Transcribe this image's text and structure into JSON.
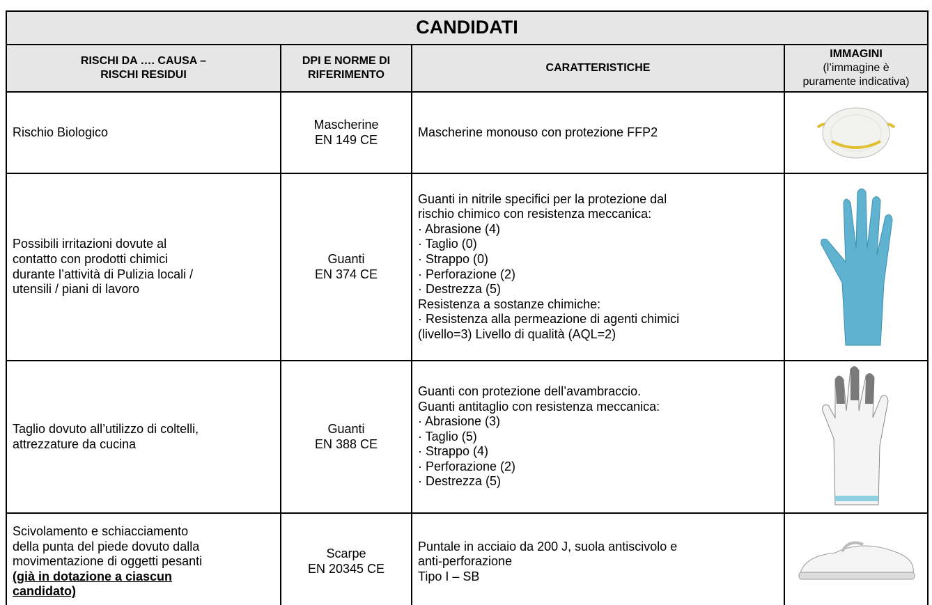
{
  "table": {
    "title": "CANDIDATI",
    "headers": [
      [
        "RISCHI DA …. CAUSA –",
        "RISCHI RESIDUI"
      ],
      [
        "DPI E NORME DI",
        "RIFERIMENTO"
      ],
      [
        "CARATTERISTICHE"
      ],
      [
        "IMMAGINI"
      ]
    ],
    "image_note": [
      "(l’immagine è",
      "puramente indicativa)"
    ],
    "rows": [
      {
        "risk": [
          "Rischio Biologico"
        ],
        "dpi": [
          "Mascherine",
          "EN 149 CE"
        ],
        "features": [
          "Mascherine monouso con protezione FFP2"
        ]
      },
      {
        "risk": [
          "Possibili irritazioni dovute al",
          "contatto con prodotti chimici",
          "durante l’attività di Pulizia locali /",
          "utensili / piani di lavoro"
        ],
        "dpi": [
          "Guanti",
          "EN 374 CE"
        ],
        "features": [
          "Guanti in nitrile specifici per la protezione dal",
          "rischio chimico con resistenza meccanica:",
          "· Abrasione (4)",
          "· Taglio (0)",
          "· Strappo (0)",
          "· Perforazione (2)",
          "· Destrezza (5)",
          "Resistenza a sostanze chimiche:",
          "· Resistenza alla permeazione di agenti chimici",
          "(livello=3) Livello di qualità (AQL=2)"
        ]
      },
      {
        "risk": [
          "Taglio dovuto all’utilizzo di coltelli,",
          "attrezzature da cucina"
        ],
        "dpi": [
          "Guanti",
          "EN 388 CE"
        ],
        "features": [
          "Guanti con protezione dell’avambraccio.",
          "Guanti antitaglio con resistenza meccanica:",
          "· Abrasione (3)",
          "· Taglio (5)",
          "· Strappo (4)",
          "· Perforazione (2)",
          "· Destrezza (5)"
        ]
      },
      {
        "risk": [
          "Scivolamento e schiacciamento",
          "della punta del piede dovuto dalla",
          "movimentazione di oggetti pesanti"
        ],
        "risk_note": [
          "(già in dotazione a ciascun",
          "candidato)"
        ],
        "dpi": [
          "Scarpe",
          "EN 20345 CE"
        ],
        "features": [
          "Puntale in acciaio da 200 J, suola antiscivolo e",
          "anti-perforazione",
          "Tipo I – SB"
        ]
      }
    ]
  }
}
